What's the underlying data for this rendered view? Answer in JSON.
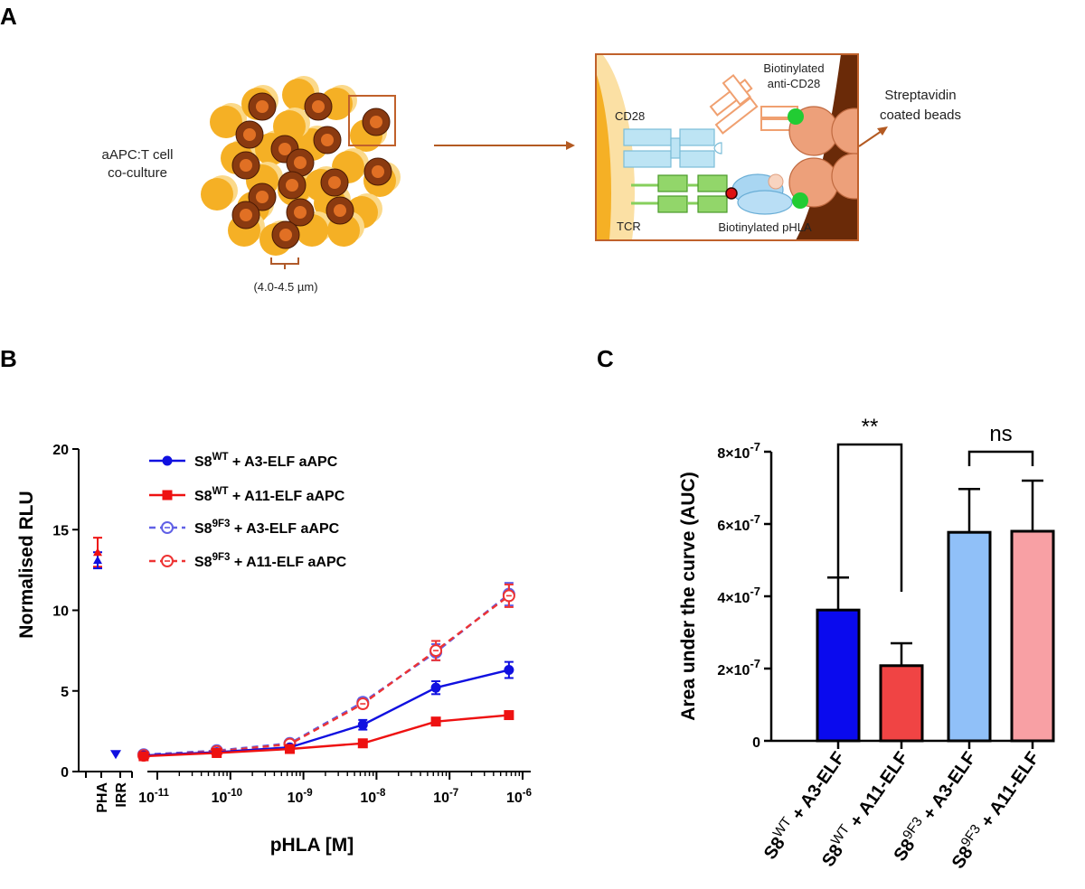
{
  "panels": {
    "a": "A",
    "b": "B",
    "c": "C"
  },
  "schematic": {
    "coculture_label_line1": "aAPC:T cell",
    "coculture_label_line2": "co-culture",
    "size_label": "(4.0-4.5 µm)",
    "cd28": "CD28",
    "tcr": "TCR",
    "anti_cd28_line1": "Biotinylated",
    "anti_cd28_line2": "anti-CD28",
    "pHLA": "Biotinylated pHLA",
    "beads_line1": "Streptavidin",
    "beads_line2": "coated beads",
    "colors": {
      "tcell": "#f5b025",
      "tcell_light": "#fbd98a",
      "bead": "#8a3a10",
      "bead_spot": "#f07a28",
      "box_border": "#c0612b",
      "cd28": "#a9dbef",
      "tcr": "#86cf5c",
      "pHLA": "#a9d6f2",
      "big_bead": "#eda07a",
      "biotin": "#22cc33"
    }
  },
  "chart_b": {
    "ylabel": "Normalised RLU",
    "xlabel": "pHLA [M]",
    "yticks": [
      "0",
      "5",
      "10",
      "15",
      "20"
    ],
    "controls": [
      "PHA",
      "IRR"
    ],
    "xticks": [
      {
        "base": "10",
        "exp": "-11"
      },
      {
        "base": "10",
        "exp": "-10"
      },
      {
        "base": "10",
        "exp": "-9"
      },
      {
        "base": "10",
        "exp": "-8"
      },
      {
        "base": "10",
        "exp": "-7"
      },
      {
        "base": "10",
        "exp": "-6"
      }
    ],
    "legend": [
      {
        "pre": "S8",
        "sup": "WT",
        "post": " + A3-ELF aAPC"
      },
      {
        "pre": "S8",
        "sup": "WT",
        "post": " + A11-ELF aAPC"
      },
      {
        "pre": "S8",
        "sup": "9F3",
        "post": " + A3-ELF aAPC"
      },
      {
        "pre": "S8",
        "sup": "9F3",
        "post": " + A11-ELF aAPC"
      }
    ]
  },
  "chart_c": {
    "ylabel": "Area under the curve (AUC)",
    "yticks": [
      {
        "m": "0",
        "e": ""
      },
      {
        "m": "2×10",
        "e": "-7"
      },
      {
        "m": "4×10",
        "e": "-7"
      },
      {
        "m": "6×10",
        "e": "-7"
      },
      {
        "m": "8×10",
        "e": "-7"
      }
    ],
    "sig_left": "**",
    "sig_right": "ns",
    "bar_labels": [
      {
        "pre": "S8",
        "sup": "WT",
        "post": " + A3-ELF"
      },
      {
        "pre": "S8",
        "sup": "WT",
        "post": " + A11-ELF"
      },
      {
        "pre": "S8",
        "sup": "9F3",
        "post": " + A3-ELF"
      },
      {
        "pre": "S8",
        "sup": "9F3",
        "post": " + A11-ELF"
      }
    ]
  },
  "chart_data": [
    {
      "type": "line",
      "ylabel": "Normalised RLU",
      "xlabel": "pHLA [M]",
      "x_scale": "log",
      "ylim": [
        0,
        20
      ],
      "x": [
        6.5e-12,
        6.5e-11,
        6.5e-10,
        6.5e-09,
        6.5e-08,
        6.5e-07
      ],
      "series": [
        {
          "name": "S8WT + A3-ELF aAPC",
          "color": "#1010e0",
          "marker": "filled-circle",
          "line": "solid",
          "values": [
            1.0,
            1.2,
            1.5,
            2.9,
            5.2,
            6.3
          ],
          "errors": [
            0.1,
            0.1,
            0.1,
            0.3,
            0.4,
            0.5
          ],
          "controls": {
            "PHA": 13.1,
            "IRR": 1.05
          }
        },
        {
          "name": "S8WT + A11-ELF aAPC",
          "color": "#ee1111",
          "marker": "filled-square",
          "line": "solid",
          "values": [
            0.95,
            1.15,
            1.4,
            1.75,
            3.1,
            3.5
          ],
          "errors": [
            0.1,
            0.1,
            0.1,
            0.1,
            0.15,
            0.2
          ],
          "controls": {
            "PHA": 13.6
          }
        },
        {
          "name": "S89F3 + A3-ELF aAPC",
          "color": "#6060e6",
          "marker": "open-circle",
          "line": "dashed",
          "values": [
            1.05,
            1.3,
            1.75,
            4.3,
            7.4,
            11.0
          ],
          "errors": [
            0.1,
            0.1,
            0.1,
            0.25,
            0.5,
            0.7
          ]
        },
        {
          "name": "S89F3 + A11-ELF aAPC",
          "color": "#ee3333",
          "marker": "open-circle",
          "line": "dashed",
          "values": [
            1.0,
            1.25,
            1.7,
            4.2,
            7.5,
            10.9
          ],
          "errors": [
            0.1,
            0.1,
            0.1,
            0.25,
            0.6,
            0.7
          ]
        }
      ]
    },
    {
      "type": "bar",
      "ylabel": "Area under the curve (AUC)",
      "ylim": [
        0,
        8e-07
      ],
      "categories": [
        "S8WT + A3-ELF",
        "S8WT + A11-ELF",
        "S89F3 + A3-ELF",
        "S89F3 + A11-ELF"
      ],
      "values": [
        3.62e-07,
        2.08e-07,
        5.77e-07,
        5.8e-07
      ],
      "errors": [
        9e-08,
        6.2e-08,
        1.2e-07,
        1.4e-07
      ],
      "colors": [
        "#0a0aee",
        "#f04444",
        "#90c0f8",
        "#f8a0a4"
      ],
      "significance": [
        {
          "pair": [
            0,
            1
          ],
          "label": "**"
        },
        {
          "pair": [
            2,
            3
          ],
          "label": "ns"
        }
      ]
    }
  ]
}
